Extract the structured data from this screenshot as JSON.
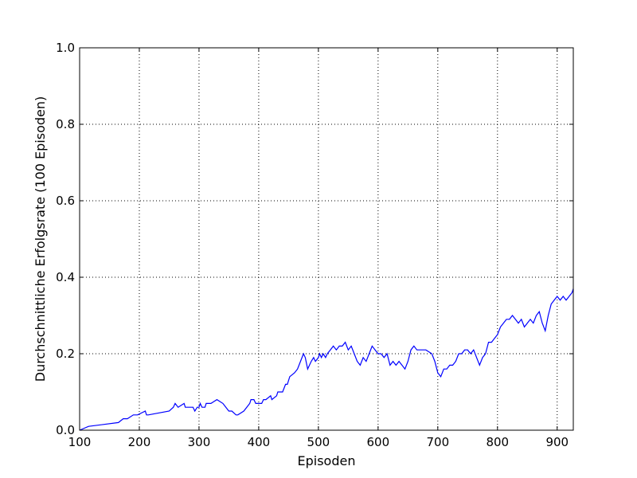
{
  "chart_data": {
    "type": "line",
    "title": "",
    "xlabel": "Episoden",
    "ylabel": "Durchschnittliche Erfolgsrate (100 Episoden)",
    "xlim": [
      100,
      927
    ],
    "ylim": [
      0.0,
      1.0
    ],
    "xticks": [
      100,
      200,
      300,
      400,
      500,
      600,
      700,
      800,
      900
    ],
    "yticks": [
      0.0,
      0.2,
      0.4,
      0.6,
      0.8,
      1.0
    ],
    "xtick_labels": [
      "100",
      "200",
      "300",
      "400",
      "500",
      "600",
      "700",
      "800",
      "900"
    ],
    "ytick_labels": [
      "0.0",
      "0.2",
      "0.4",
      "0.6",
      "0.8",
      "1.0"
    ],
    "grid": true,
    "legend": "none",
    "series": [
      {
        "color": "#0000ff",
        "x": [
          100,
          115,
          165,
          173,
          180,
          190,
          197,
          210,
          212,
          215,
          250,
          257,
          260,
          265,
          275,
          277,
          280,
          290,
          293,
          297,
          300,
          302,
          305,
          310,
          312,
          320,
          330,
          340,
          345,
          350,
          355,
          362,
          365,
          375,
          385,
          387,
          392,
          395,
          405,
          408,
          412,
          420,
          422,
          430,
          432,
          440,
          445,
          448,
          452,
          460,
          465,
          470,
          475,
          478,
          482,
          485,
          488,
          492,
          495,
          500,
          502,
          505,
          508,
          512,
          515,
          520,
          525,
          530,
          535,
          540,
          545,
          550,
          555,
          560,
          565,
          570,
          575,
          580,
          585,
          590,
          595,
          600,
          605,
          610,
          615,
          620,
          625,
          630,
          635,
          640,
          645,
          650,
          655,
          660,
          665,
          668,
          680,
          690,
          695,
          700,
          705,
          710,
          715,
          720,
          725,
          730,
          735,
          740,
          745,
          750,
          755,
          760,
          765,
          770,
          775,
          780,
          785,
          790,
          795,
          800,
          805,
          810,
          815,
          820,
          825,
          830,
          835,
          840,
          845,
          850,
          855,
          860,
          865,
          870,
          875,
          880,
          885,
          890,
          895,
          900,
          905,
          910,
          915,
          920,
          925,
          927
        ],
        "y": [
          0.0,
          0.01,
          0.02,
          0.03,
          0.03,
          0.04,
          0.04,
          0.05,
          0.04,
          0.04,
          0.05,
          0.06,
          0.07,
          0.06,
          0.07,
          0.06,
          0.06,
          0.06,
          0.05,
          0.06,
          0.06,
          0.07,
          0.06,
          0.06,
          0.07,
          0.07,
          0.08,
          0.07,
          0.06,
          0.05,
          0.05,
          0.04,
          0.04,
          0.05,
          0.07,
          0.08,
          0.08,
          0.07,
          0.07,
          0.08,
          0.08,
          0.09,
          0.08,
          0.09,
          0.1,
          0.1,
          0.12,
          0.12,
          0.14,
          0.15,
          0.16,
          0.18,
          0.2,
          0.19,
          0.16,
          0.17,
          0.18,
          0.19,
          0.18,
          0.19,
          0.2,
          0.19,
          0.2,
          0.19,
          0.2,
          0.21,
          0.22,
          0.21,
          0.22,
          0.22,
          0.23,
          0.21,
          0.22,
          0.2,
          0.18,
          0.17,
          0.19,
          0.18,
          0.2,
          0.22,
          0.21,
          0.2,
          0.2,
          0.19,
          0.2,
          0.17,
          0.18,
          0.17,
          0.18,
          0.17,
          0.16,
          0.18,
          0.21,
          0.22,
          0.21,
          0.21,
          0.21,
          0.2,
          0.18,
          0.15,
          0.14,
          0.16,
          0.16,
          0.17,
          0.17,
          0.18,
          0.2,
          0.2,
          0.21,
          0.21,
          0.2,
          0.21,
          0.19,
          0.17,
          0.19,
          0.2,
          0.23,
          0.23,
          0.24,
          0.25,
          0.27,
          0.28,
          0.29,
          0.29,
          0.3,
          0.29,
          0.28,
          0.29,
          0.27,
          0.28,
          0.29,
          0.28,
          0.3,
          0.31,
          0.28,
          0.26,
          0.3,
          0.33,
          0.34,
          0.35,
          0.34,
          0.35,
          0.34,
          0.35,
          0.36,
          0.37
        ]
      }
    ]
  }
}
